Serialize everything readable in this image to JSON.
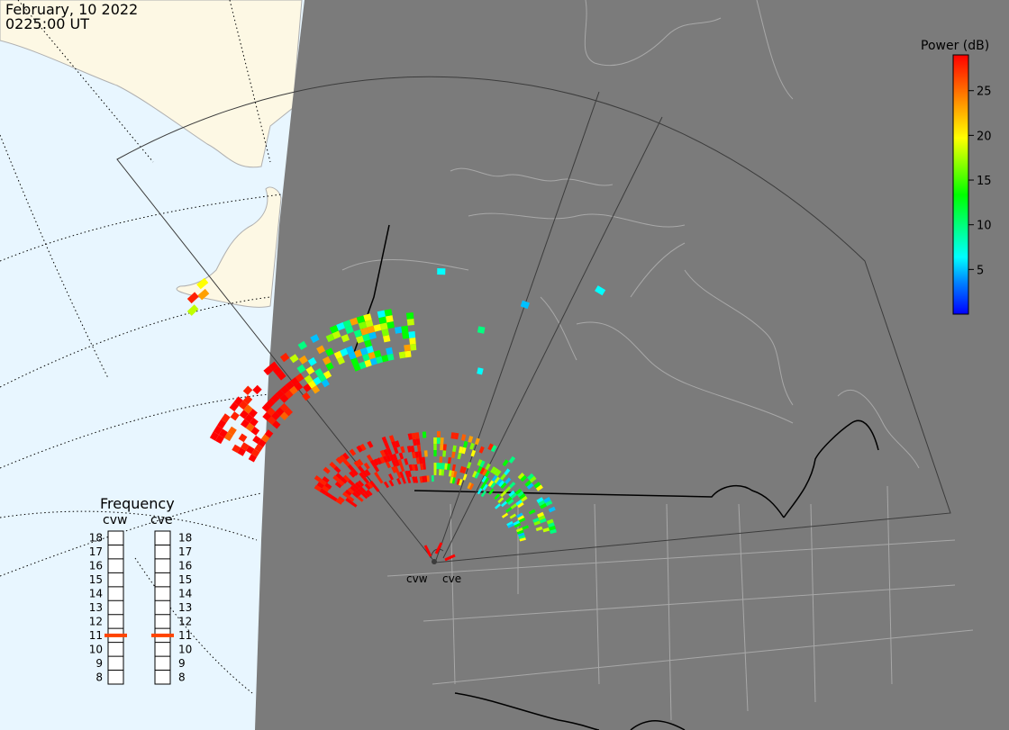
{
  "header": {
    "date": "February, 10 2022",
    "time": "0225:00 UT"
  },
  "colorbar": {
    "title": "Power (dB)",
    "ticks": [
      "25",
      "20",
      "15",
      "10",
      "5"
    ],
    "tick_values": [
      25,
      20,
      15,
      10,
      5
    ],
    "range": [
      0,
      29
    ],
    "colors": [
      "#0000ff",
      "#0080ff",
      "#00ffff",
      "#00ff80",
      "#00ff00",
      "#80ff00",
      "#ffff00",
      "#ffa000",
      "#ff6000",
      "#ff0000"
    ]
  },
  "radars": [
    {
      "code": "cvw"
    },
    {
      "code": "cve"
    }
  ],
  "frequency_panel": {
    "title": "Frequency",
    "columns": [
      "cvw",
      "cve"
    ],
    "scale": [
      "18",
      "17",
      "16",
      "15",
      "14",
      "13",
      "12",
      "11",
      "10",
      "9",
      "8"
    ],
    "selected_mhz": {
      "cvw": 11,
      "cve": 11
    },
    "marker_color": "#ff4400"
  },
  "colors": {
    "night_land": "#7b7b7b",
    "day_ocean": "#e8f6ff",
    "day_land": "#fdf8e4",
    "boundary": "#a8a8a8",
    "coastline": "#000000",
    "fov": "#3c3c3c"
  }
}
